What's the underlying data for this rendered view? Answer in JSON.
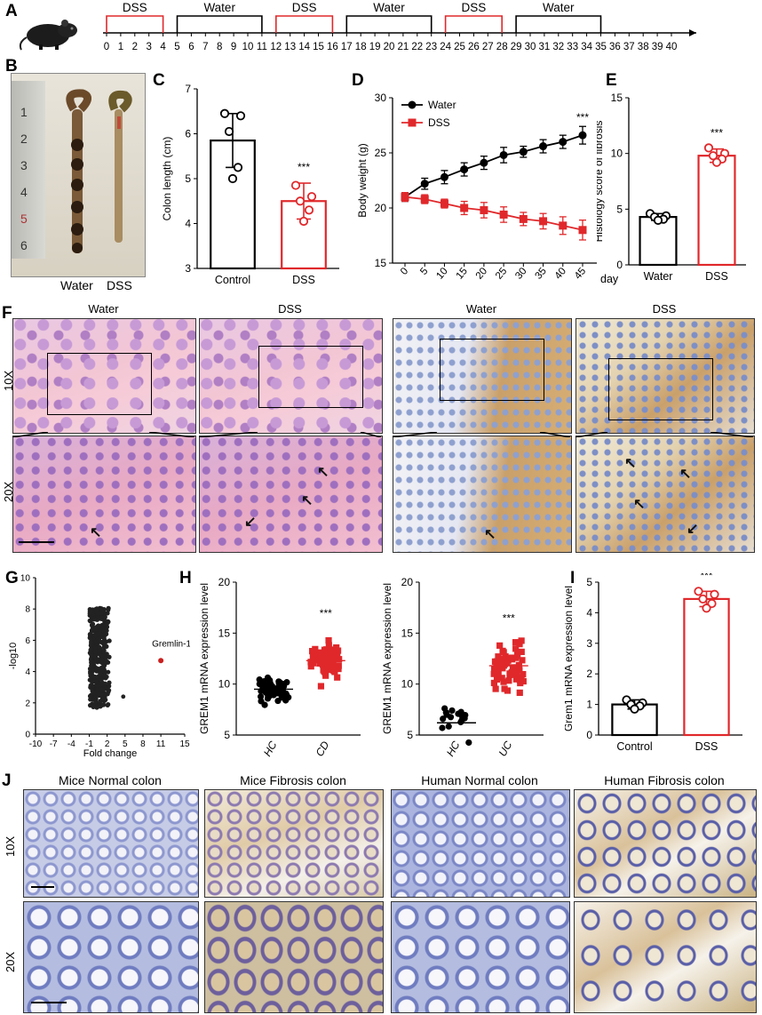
{
  "panels": {
    "A": "A",
    "B": "B",
    "C": "C",
    "D": "D",
    "E": "E",
    "F": "F",
    "G": "G",
    "H": "H",
    "I": "I",
    "J": "J"
  },
  "timeline": {
    "periods": [
      "DSS",
      "Water",
      "DSS",
      "Water",
      "DSS",
      "Water"
    ],
    "days": [
      "0",
      "1",
      "2",
      "3",
      "4",
      "5",
      "6",
      "7",
      "8",
      "9",
      "10",
      "11",
      "12",
      "13",
      "14",
      "15",
      "16",
      "17",
      "18",
      "19",
      "20",
      "21",
      "22",
      "23",
      "24",
      "25",
      "26",
      "27",
      "28",
      "29",
      "30",
      "31",
      "32",
      "33",
      "34",
      "35",
      "36",
      "37",
      "38",
      "39",
      "40"
    ],
    "colors": {
      "dss": "#e0282b",
      "water": "#000000"
    }
  },
  "panel_b": {
    "labels": [
      "Water",
      "DSS"
    ],
    "ruler_marks": [
      "1",
      "2",
      "3",
      "4",
      "5",
      "6"
    ]
  },
  "panel_f": {
    "he_water": "Water",
    "he_dss": "DSS",
    "ihc_water": "Water",
    "ihc_dss": "DSS",
    "row_10x": "10X",
    "row_20x": "20X"
  },
  "panel_j": {
    "titles": [
      "Mice Normal colon",
      "Mice Fibrosis colon",
      "Human Normal colon",
      "Human Fibrosis colon"
    ],
    "row_10x": "10X",
    "row_20x": "20X"
  },
  "chart_data": [
    {
      "id": "C",
      "type": "bar",
      "categories": [
        "Control",
        "DSS"
      ],
      "values": [
        5.85,
        4.5
      ],
      "errors": [
        0.6,
        0.4
      ],
      "points": [
        [
          6.45,
          6.4,
          6.05,
          5.25,
          5.0
        ],
        [
          4.85,
          4.6,
          4.5,
          4.3,
          4.05
        ]
      ],
      "ylabel": "Colon length (cm)",
      "ylim": [
        3,
        7
      ],
      "yticks": [
        "3",
        "4",
        "5",
        "6",
        "7"
      ],
      "significance": "***",
      "colors": [
        "#000000",
        "#e0282b"
      ]
    },
    {
      "id": "D",
      "type": "line",
      "x": [
        0,
        5,
        10,
        15,
        20,
        25,
        30,
        35,
        40,
        45
      ],
      "xticks": [
        "0",
        "5",
        "10",
        "15",
        "20",
        "25",
        "30",
        "35",
        "40",
        "45"
      ],
      "xunit": "day",
      "series": [
        {
          "name": "Water",
          "values": [
            21.0,
            22.2,
            22.8,
            23.5,
            24.1,
            24.8,
            25.1,
            25.6,
            26.0,
            26.6
          ],
          "errors": [
            0.4,
            0.5,
            0.6,
            0.6,
            0.6,
            0.7,
            0.5,
            0.6,
            0.6,
            0.8
          ],
          "color": "#000000"
        },
        {
          "name": "DSS",
          "values": [
            21.0,
            20.8,
            20.4,
            20.0,
            19.8,
            19.4,
            19.0,
            18.8,
            18.4,
            18.0
          ],
          "errors": [
            0.4,
            0.4,
            0.4,
            0.6,
            0.7,
            0.7,
            0.6,
            0.7,
            0.8,
            0.9
          ],
          "color": "#e0282b"
        }
      ],
      "ylabel": "Body weight (g)",
      "ylim": [
        15,
        30
      ],
      "yticks": [
        "15",
        "20",
        "25",
        "30"
      ],
      "significance": "***"
    },
    {
      "id": "E",
      "type": "bar",
      "categories": [
        "Water",
        "DSS"
      ],
      "values": [
        4.3,
        9.8
      ],
      "errors": [
        0.3,
        0.6
      ],
      "points": [
        [
          4.6,
          4.4,
          4.3,
          4.1,
          4.0
        ],
        [
          10.5,
          10.0,
          9.8,
          9.5,
          9.2
        ]
      ],
      "ylabel": "Histology score of fibrosis",
      "ylim": [
        0,
        15
      ],
      "yticks": [
        "0",
        "5",
        "10",
        "15"
      ],
      "significance": "***",
      "colors": [
        "#000000",
        "#e0282b"
      ]
    },
    {
      "id": "G",
      "type": "scatter",
      "xlabel": "Fold change",
      "ylabel": "-log10",
      "xlim": [
        -10,
        15
      ],
      "ylim": [
        0,
        10
      ],
      "xticks": [
        "-10",
        "-7",
        "-4",
        "-1",
        "2",
        "5",
        "8",
        "11",
        "15"
      ],
      "yticks": [
        "0",
        "2",
        "4",
        "6",
        "8",
        "10"
      ],
      "highlight": {
        "label": "Gremlin-1",
        "x": 11,
        "y": 4.7,
        "color": "#cc1f1f"
      }
    },
    {
      "id": "H1",
      "type": "scatter",
      "categories": [
        "HC",
        "CD"
      ],
      "means": [
        9.5,
        12.3
      ],
      "ylabel": "GREM1 mRNA expression level",
      "ylim": [
        5,
        20
      ],
      "yticks": [
        "5",
        "10",
        "15",
        "20"
      ],
      "significance": "***",
      "colors": [
        "#000000",
        "#e0282b"
      ]
    },
    {
      "id": "H2",
      "type": "scatter",
      "categories": [
        "HC",
        "UC"
      ],
      "means": [
        6.2,
        11.8
      ],
      "ylabel": "GREM1 mRNA expression level",
      "ylim": [
        5,
        20
      ],
      "yticks": [
        "5",
        "10",
        "15",
        "20"
      ],
      "significance": "***",
      "colors": [
        "#000000",
        "#e0282b"
      ]
    },
    {
      "id": "I",
      "type": "bar",
      "categories": [
        "Control",
        "DSS"
      ],
      "values": [
        1.0,
        4.45
      ],
      "errors": [
        0.15,
        0.25
      ],
      "points": [
        [
          1.15,
          1.05,
          1.0,
          0.95,
          0.85
        ],
        [
          4.7,
          4.6,
          4.45,
          4.3,
          4.15
        ]
      ],
      "ylabel": "Grem1 mRNA expression level",
      "ylim": [
        0,
        5
      ],
      "yticks": [
        "0",
        "1",
        "2",
        "3",
        "4",
        "5"
      ],
      "significance": "***",
      "colors": [
        "#000000",
        "#e0282b"
      ]
    }
  ]
}
